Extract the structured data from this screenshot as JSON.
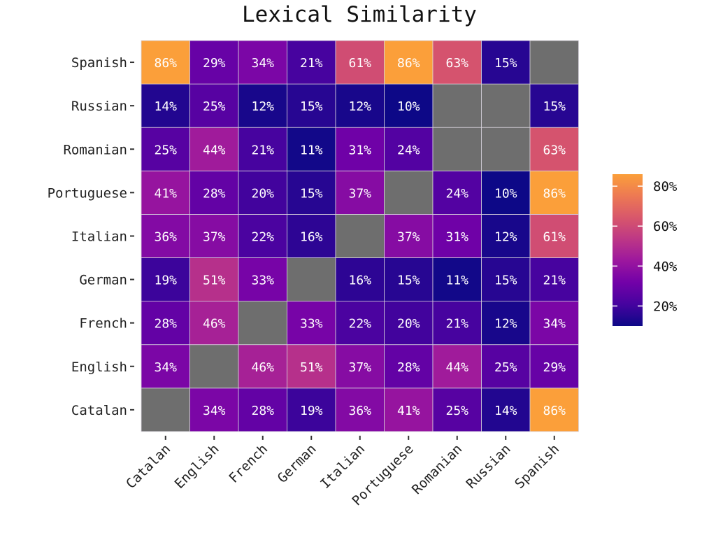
{
  "chart_data": {
    "type": "heatmap",
    "title": "Lexical Similarity",
    "x_categories": [
      "Catalan",
      "English",
      "French",
      "German",
      "Italian",
      "Portuguese",
      "Romanian",
      "Russian",
      "Spanish"
    ],
    "y_categories": [
      "Catalan",
      "English",
      "French",
      "German",
      "Italian",
      "Portuguese",
      "Romanian",
      "Russian",
      "Spanish"
    ],
    "values": [
      [
        null,
        34,
        28,
        19,
        36,
        41,
        25,
        14,
        86
      ],
      [
        34,
        null,
        46,
        51,
        37,
        28,
        44,
        25,
        29
      ],
      [
        28,
        46,
        null,
        33,
        22,
        20,
        21,
        12,
        34
      ],
      [
        19,
        51,
        33,
        null,
        16,
        15,
        11,
        15,
        21
      ],
      [
        36,
        37,
        22,
        16,
        null,
        37,
        31,
        12,
        61
      ],
      [
        41,
        28,
        20,
        15,
        37,
        null,
        24,
        10,
        86
      ],
      [
        25,
        44,
        21,
        11,
        31,
        24,
        null,
        null,
        63
      ],
      [
        14,
        25,
        12,
        15,
        12,
        10,
        null,
        null,
        15
      ],
      [
        86,
        29,
        34,
        21,
        61,
        86,
        63,
        15,
        null
      ]
    ],
    "value_format": "percent",
    "missing_color": "#6e6e6e",
    "colorscale": "plasma",
    "colorbar": {
      "range": [
        10,
        86
      ],
      "ticks": [
        20,
        40,
        60,
        80
      ],
      "tick_labels": [
        "20%",
        "40%",
        "60%",
        "80%"
      ],
      "placement": "right"
    }
  }
}
